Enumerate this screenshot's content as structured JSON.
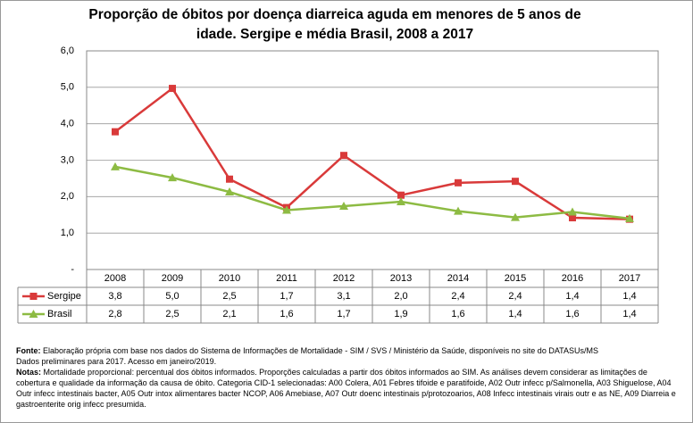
{
  "chart_data": {
    "type": "line",
    "title": "Proporção de óbitos por doença diarreica aguda em menores de 5 anos de idade. Sergipe e média Brasil, 2008 a 2017",
    "categories": [
      "2008",
      "2009",
      "2010",
      "2011",
      "2012",
      "2013",
      "2014",
      "2015",
      "2016",
      "2017"
    ],
    "series": [
      {
        "name": "Sergipe",
        "color": "#d93a3a",
        "marker": "square",
        "values": [
          3.78,
          4.97,
          2.48,
          1.7,
          3.13,
          2.04,
          2.38,
          2.42,
          1.42,
          1.38
        ],
        "value_labels": [
          "3,8",
          "5,0",
          "2,5",
          "1,7",
          "3,1",
          "2,0",
          "2,4",
          "2,4",
          "1,4",
          "1,4"
        ]
      },
      {
        "name": "Brasil",
        "color": "#8dbb43",
        "marker": "triangle",
        "values": [
          2.82,
          2.52,
          2.13,
          1.63,
          1.74,
          1.86,
          1.6,
          1.43,
          1.58,
          1.4
        ],
        "value_labels": [
          "2,8",
          "2,5",
          "2,1",
          "1,6",
          "1,7",
          "1,9",
          "1,6",
          "1,4",
          "1,6",
          "1,4"
        ]
      }
    ],
    "ylim": [
      0,
      6
    ],
    "yticks": [
      {
        "value": 0,
        "label": "-"
      },
      {
        "value": 1,
        "label": "1,0"
      },
      {
        "value": 2,
        "label": "2,0"
      },
      {
        "value": 3,
        "label": "3,0"
      },
      {
        "value": 4,
        "label": "4,0"
      },
      {
        "value": 5,
        "label": "5,0"
      },
      {
        "value": 6,
        "label": "6,0"
      }
    ],
    "grid": true,
    "source": {
      "label": "Fonte:",
      "lines": [
        "Elaboração própria com base nos dados do Sistema de Informações de Mortalidade - SIM / SVS / Ministério da Saúde, disponíveis no site do DATASUs/MS",
        "Dados preliminares para 2017. Acesso em janeiro/2019."
      ]
    },
    "notes": {
      "label": "Notas:",
      "text": "Mortalidade proporcional: percentual dos óbitos informados. Proporções calculadas a partir dos óbitos informados ao SIM. As análises devem considerar as limitações de cobertura e qualidade da informação da causa de óbito. Categoria CID-1 selecionadas: A00 Colera, A01 Febres tifoide e paratifoide, A02 Outr infecc p/Salmonella, A03 Shiguelose, A04 Outr infecc intestinais bacter, A05 Outr intox alimentares bacter NCOP, A06 Amebiase, A07 Outr doenc intestinais p/protozoarios, A08 Infecc intestinais virais outr e as NE, A09 Diarreia e gastroenterite orig infecc presumida."
    }
  }
}
